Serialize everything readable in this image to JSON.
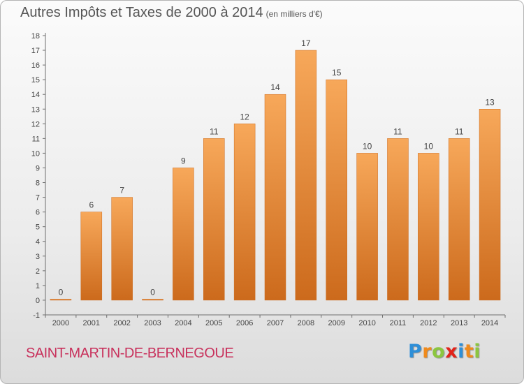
{
  "header": {
    "title": "Autres Impôts et Taxes de 2000 à 2014",
    "unit_note": "(en milliers d'€)"
  },
  "footer": {
    "place_name": "SAINT-MARTIN-DE-BERNEGOUE",
    "logo": {
      "letters": [
        "P",
        "r",
        "o",
        "x",
        "i",
        "t",
        "i"
      ],
      "colors": [
        "#2e8fd8",
        "#f08a1c",
        "#8cc63f",
        "#e2231a",
        "#2e8fd8",
        "#f08a1c",
        "#8cc63f"
      ]
    }
  },
  "colors": {
    "bar_light": "#f7a85a",
    "bar_dark": "#cc6a1c",
    "axis": "#6e6e6e",
    "grid": "#cfcfcf"
  },
  "chart_data": {
    "type": "bar",
    "title": "Autres Impôts et Taxes de 2000 à 2014",
    "subtitle": "(en milliers d'€)",
    "categories": [
      "2000",
      "2001",
      "2002",
      "2003",
      "2004",
      "2005",
      "2006",
      "2007",
      "2008",
      "2009",
      "2010",
      "2011",
      "2012",
      "2013",
      "2014"
    ],
    "values": [
      0,
      6,
      7,
      0,
      9,
      11,
      12,
      14,
      17,
      15,
      10,
      11,
      10,
      11,
      13
    ],
    "data_labels": [
      "0",
      "6",
      "7",
      "0",
      "9",
      "11",
      "12",
      "14",
      "17",
      "15",
      "10",
      "11",
      "10",
      "11",
      "13"
    ],
    "y_ticks": [
      "-1",
      "0",
      "1",
      "2",
      "3",
      "4",
      "5",
      "6",
      "7",
      "8",
      "9",
      "10",
      "11",
      "12",
      "13",
      "14",
      "15",
      "16",
      "17",
      "18"
    ],
    "ylim": [
      -1,
      18
    ],
    "xlabel": "",
    "ylabel": "",
    "grid": false,
    "legend": "none"
  }
}
